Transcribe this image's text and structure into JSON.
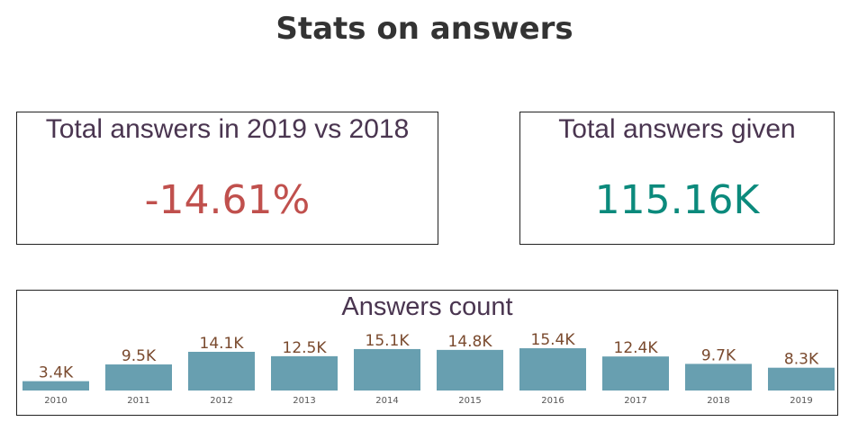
{
  "page_title": "Stats on answers",
  "cards": [
    {
      "title": "Total answers in 2019 vs 2018",
      "value": "-14.61%",
      "color": "#c0504d"
    },
    {
      "title": "Total answers given",
      "value": "115.16K",
      "color": "#0b8a7c"
    }
  ],
  "chart_data": {
    "type": "bar",
    "title": "Answers count",
    "categories": [
      "2010",
      "2011",
      "2012",
      "2013",
      "2014",
      "2015",
      "2016",
      "2017",
      "2018",
      "2019"
    ],
    "values": [
      3.4,
      9.5,
      14.1,
      12.5,
      15.1,
      14.8,
      15.4,
      12.4,
      9.7,
      8.3
    ],
    "labels": [
      "3.4K",
      "9.5K",
      "14.1K",
      "12.5K",
      "15.1K",
      "14.8K",
      "15.4K",
      "12.4K",
      "9.7K",
      "8.3K"
    ],
    "unit": "K",
    "bar_color": "#689fb0",
    "label_color": "#7a4a2e"
  }
}
